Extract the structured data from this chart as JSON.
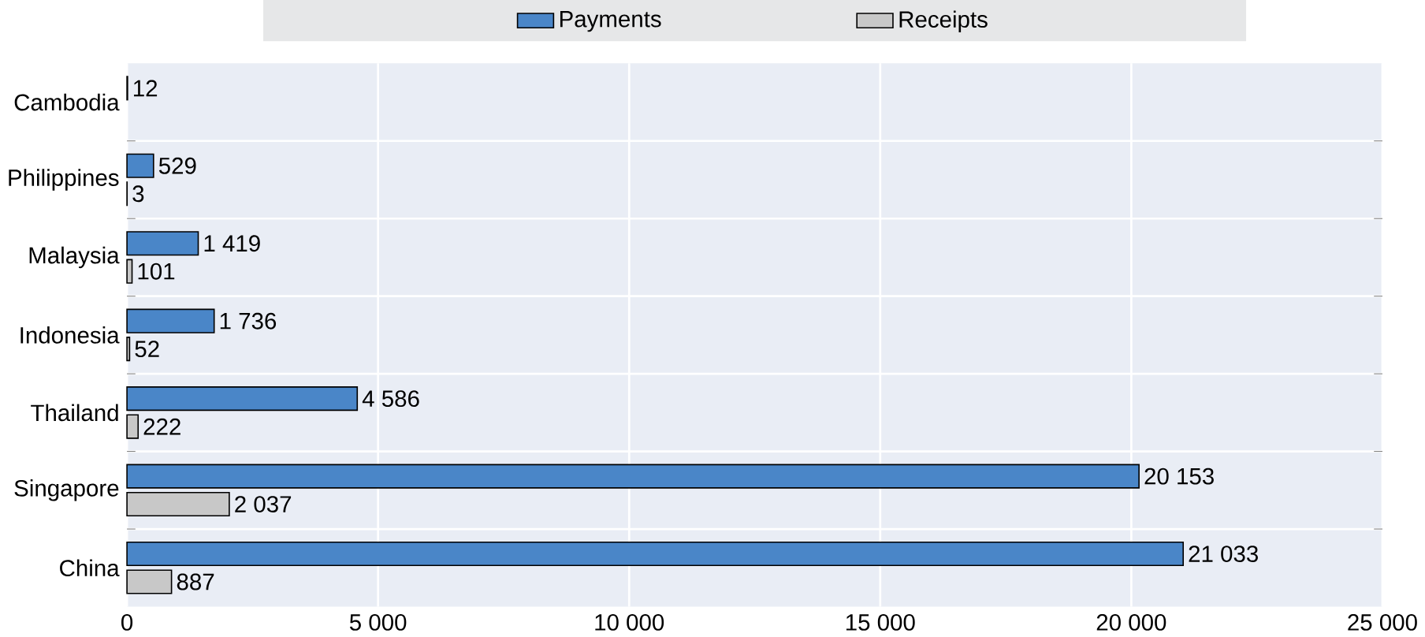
{
  "chart_data": {
    "type": "bar",
    "orientation": "horizontal",
    "categories": [
      "Cambodia",
      "Philippines",
      "Malaysia",
      "Indonesia",
      "Thailand",
      "Singapore",
      "China"
    ],
    "series": [
      {
        "name": "Payments",
        "color": "#4a86c8",
        "values": [
          12,
          529,
          1419,
          1736,
          4586,
          20153,
          21033
        ],
        "value_labels": [
          "12",
          "529",
          "1 419",
          "1 736",
          "4 586",
          "20 153",
          "21 033"
        ]
      },
      {
        "name": "Receipts",
        "color": "#c8c8c8",
        "values": [
          null,
          3,
          101,
          52,
          222,
          2037,
          887
        ],
        "value_labels": [
          null,
          "3",
          "101",
          "52",
          "222",
          "2 037",
          "887"
        ]
      }
    ],
    "xlim": [
      0,
      25000
    ],
    "xticks": [
      0,
      {
        "value": 5000,
        "label": "5 000"
      },
      {
        "value": 10000,
        "label": "10 000"
      },
      {
        "value": 15000,
        "label": "15 000"
      },
      {
        "value": 20000,
        "label": "20 000"
      },
      {
        "value": 25000,
        "label": "25 000"
      }
    ],
    "grid": "x",
    "legend": "top"
  }
}
